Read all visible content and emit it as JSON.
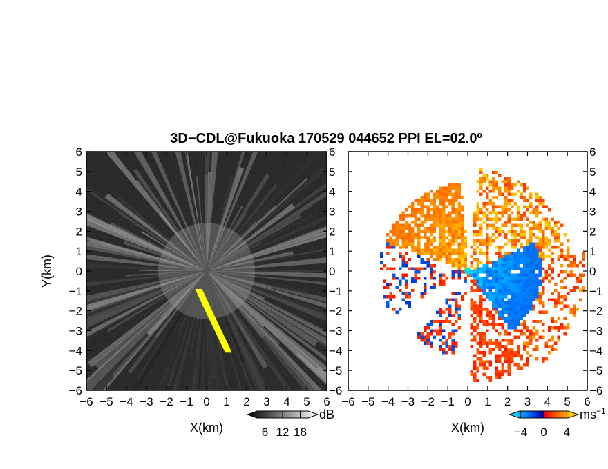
{
  "chart_data": [
    {
      "type": "heatmap",
      "panel": "left",
      "quantity": "SNR",
      "title": "3D−CDL@Fukuoka 170529 044652 PPI EL=02.0º",
      "xlabel": "X(km)",
      "ylabel": "Y(km)",
      "xlim": [
        -6,
        6
      ],
      "ylim": [
        -6,
        6
      ],
      "x_ticks": [
        "−6",
        "−5",
        "−4",
        "−3",
        "−2",
        "−1",
        "0",
        "1",
        "2",
        "3",
        "4",
        "5",
        "6"
      ],
      "y_ticks": [
        "6",
        "5",
        "4",
        "3",
        "2",
        "1",
        "0",
        "−1",
        "−2",
        "−3",
        "−4",
        "−5",
        "−6"
      ],
      "colorbar": {
        "ticks": [
          "6",
          "12",
          "18"
        ],
        "tick_values": [
          6,
          12,
          18
        ],
        "range": [
          0,
          24
        ],
        "unit": "dB",
        "colors": [
          "#000000",
          "#ffffff"
        ]
      },
      "annotations": [
        {
          "color": "#ffff00",
          "shape": "strip",
          "points": [
            [
              -0.4,
              -0.9
            ],
            [
              0.2,
              -2.2
            ],
            [
              1.1,
              -4.1
            ]
          ]
        }
      ]
    },
    {
      "type": "heatmap",
      "panel": "right",
      "quantity": "radial velocity",
      "xlabel": "X(km)",
      "xlim": [
        -6,
        6
      ],
      "ylim": [
        -6,
        6
      ],
      "x_ticks": [
        "−6",
        "−5",
        "−4",
        "−3",
        "−2",
        "−1",
        "0",
        "1",
        "2",
        "3",
        "4",
        "5",
        "6"
      ],
      "y_ticks": [
        "6",
        "5",
        "4",
        "3",
        "2",
        "1",
        "0",
        "−1",
        "−2",
        "−3",
        "−4",
        "−5",
        "−6"
      ],
      "colorbar": {
        "ticks": [
          "−4",
          "0",
          "4"
        ],
        "tick_values": [
          -4,
          0,
          4
        ],
        "range": [
          -6,
          6
        ],
        "unit": "ms",
        "unit_exponent": "−1",
        "colors": [
          "#00ffff",
          "#0080ff",
          "#0000c0",
          "#ff0000",
          "#ff8000",
          "#ffff00"
        ]
      }
    }
  ]
}
